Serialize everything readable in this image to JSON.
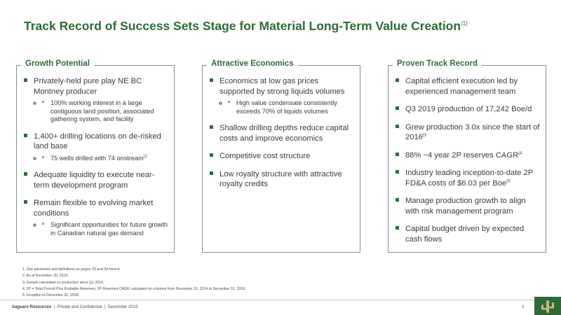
{
  "title": {
    "text": "Track Record of Success Sets Stage for Material Long-Term Value Creation",
    "footnote_ref": "(1)"
  },
  "columns": [
    {
      "heading": "Growth Potential",
      "items": [
        {
          "text": "Privately-held pure play NE BC Montney producer",
          "sub": [
            {
              "text": "100% working interest in a large contiguous land position, associated gathering system, and facility",
              "sup": ""
            }
          ],
          "sup": ""
        },
        {
          "text": "1,400+ drilling locations on de-risked land base",
          "sub": [
            {
              "text": "75 wells drilled with 74 onstream",
              "sup": "(2"
            }
          ],
          "sup": ""
        },
        {
          "text": "Adequate liquidity to execute near-term development program",
          "sub": [],
          "sup": ""
        },
        {
          "text": "Remain flexible to evolving market conditions",
          "sub": [
            {
              "text": "Significant opportunities for future growth in Canadian natural gas demand",
              "sup": ""
            }
          ],
          "sup": ""
        }
      ]
    },
    {
      "heading": "Attractive Economics",
      "items": [
        {
          "text": "Economics at low gas prices supported by strong liquids volumes",
          "sub": [
            {
              "text": "High value condensate consistently exceeds 70% of liquids volumes",
              "sup": ""
            }
          ],
          "sup": ""
        },
        {
          "text": "Shallow drilling depths reduce capital costs and improve economics",
          "sub": [],
          "sup": ""
        },
        {
          "text": "Competitive cost structure",
          "sub": [],
          "sup": ""
        },
        {
          "text": "Low royalty structure with attractive royalty credits",
          "sub": [],
          "sup": ""
        }
      ]
    },
    {
      "heading": "Proven Track Record",
      "items": [
        {
          "text": "Capital efficient execution led by experienced management team",
          "sub": [],
          "sup": ""
        },
        {
          "text": "Q3 2019 production of 17,242 Boe/d",
          "sub": [],
          "sup": ""
        },
        {
          "text": "Grew production 3.0x since the start of 2016",
          "sub": [],
          "sup": "(3"
        },
        {
          "text": "88% ~4 year 2P reserves CAGR",
          "sub": [],
          "sup": "(4"
        },
        {
          "text": "Industry leading inception-to-date 2P FD&A costs of $6.03 per Boe",
          "sub": [],
          "sup": "(5"
        },
        {
          "text": "Manage production growth to align with risk management program",
          "sub": [],
          "sup": ""
        },
        {
          "text": "Capital budget driven by expected cash flows",
          "sub": [],
          "sup": ""
        }
      ]
    }
  ],
  "footnotes": [
    "1.  See advisories and definitions on pages 33 and 34 hereof.",
    "2.  As at November 30, 2019.",
    "3.  Growth calculated on production since Q1 2016.",
    "4.  2P = Total Proved Plus Probable Reserves; 2P Reserves CAGR calculated on volumes from December 31, 2014 to December 31, 2018.",
    "5.  Inception to December 31, 2018."
  ],
  "footer": {
    "company": "Saguaro Resources",
    "rest": "  |  Private and Confidential  |  December 2019",
    "page_number": "2"
  },
  "colors": {
    "brand_green": "#2f6b36",
    "text": "#3b3b3b",
    "border": "#8a8a8a"
  },
  "icons": [
    "saguaro-logo-icon"
  ]
}
